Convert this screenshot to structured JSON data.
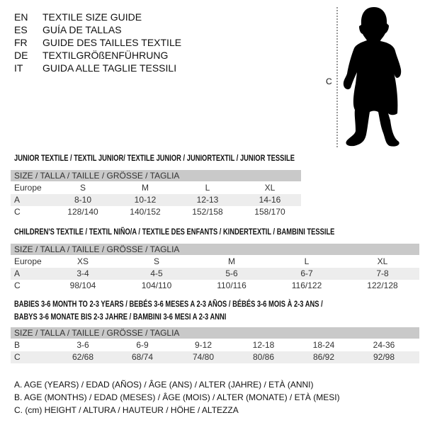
{
  "languages": [
    {
      "code": "EN",
      "name": "TEXTILE SIZE GUIDE"
    },
    {
      "code": "ES",
      "name": "GUÍA DE TALLAS"
    },
    {
      "code": "FR",
      "name": "GUIDE DES TAILLES TEXTILE"
    },
    {
      "code": "DE",
      "name": "TEXTILGRÖßENFÜHRUNG"
    },
    {
      "code": "IT",
      "name": "GUIDA ALLE TAGLIE TESSILI"
    }
  ],
  "figure": {
    "label": "C",
    "icon": "child-silhouette-icon"
  },
  "tables": [
    {
      "title": "JUNIOR TEXTILE / TEXTIL JUNIOR/ TEXTILE JUNIOR / JUNIORTEXTIL / JUNIOR TESSILE",
      "header": "SIZE / TALLA / TAILLE / GRÖSSE / TAGLIA",
      "rows": [
        {
          "label": "Europe",
          "values": [
            "S",
            "M",
            "L",
            "XL"
          ]
        },
        {
          "label": "A",
          "values": [
            "8-10",
            "10-12",
            "12-13",
            "14-16"
          ]
        },
        {
          "label": "C",
          "values": [
            "128/140",
            "140/152",
            "152/158",
            "158/170"
          ]
        }
      ]
    },
    {
      "title": "CHILDREN'S TEXTILE / TEXTIL NIÑO/A / TEXTILE DES ENFANTS / KINDERTEXTIL / BAMBINI TESSILE",
      "header": "SIZE / TALLA / TAILLE / GRÖSSE / TAGLIA",
      "rows": [
        {
          "label": "Europe",
          "values": [
            "XS",
            "S",
            "M",
            "L",
            "XL"
          ]
        },
        {
          "label": "A",
          "values": [
            "3-4",
            "4-5",
            "5-6",
            "6-7",
            "7-8"
          ]
        },
        {
          "label": "C",
          "values": [
            "98/104",
            "104/110",
            "110/116",
            "116/122",
            "122/128"
          ]
        }
      ]
    },
    {
      "title": "BABIES 3-6 MONTH TO 2-3 YEARS / BEBÉS 3-6 MESES A 2-3 AÑOS / BÉBÉS 3-6 MOIS À 2-3 ANS /",
      "title2": "BABYS 3-6 MONATE BIS 2-3 JAHRE / BAMBINI 3-6 MESI A 2-3 ANNI",
      "header": "SIZE / TALLA / TAILLE / GRÖSSE / TAGLIA",
      "rows": [
        {
          "label": "B",
          "values": [
            "3-6",
            "6-9",
            "9-12",
            "12-18",
            "18-24",
            "24-36"
          ]
        },
        {
          "label": "C",
          "values": [
            "62/68",
            "68/74",
            "74/80",
            "80/86",
            "86/92",
            "92/98"
          ]
        }
      ]
    }
  ],
  "legend": [
    "A. AGE (YEARS) / EDAD (AÑOS) / ÂGE (ANS) / ALTER (JAHRE) / ETÀ (ANNI)",
    "B. AGE (MONTHS) / EDAD (MESES) / ÂGE (MOIS) / ALTER (MONATE) / ETÀ (MESI)",
    "C. (cm) HEIGHT / ALTURA / HAUTEUR / HÖHE / ALTEZZA"
  ],
  "colors": {
    "header_bg": "#c9c9c9",
    "row_shade": "#ededed",
    "text": "#111111"
  }
}
